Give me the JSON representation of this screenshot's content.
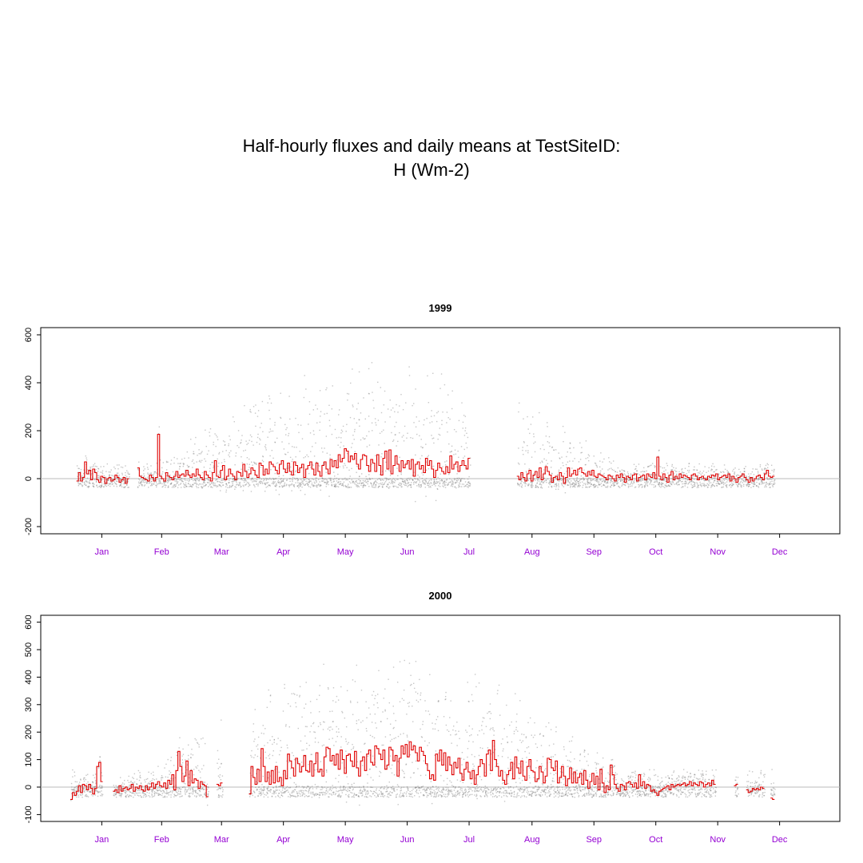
{
  "title": {
    "line1": "Half-hourly fluxes and daily means at TestSiteID:",
    "line2": "H (Wm-2)"
  },
  "colors": {
    "halfhourly": "#808080",
    "daily_mean": "#e00000",
    "zero_line": "#bbbbbb",
    "month_labels": "#9400d3",
    "axis": "#000000"
  },
  "chart_data": [
    {
      "type": "line",
      "title": "1999",
      "xlabel": "",
      "ylabel": "",
      "ylim": [
        -230,
        630
      ],
      "y_ticks": [
        -200,
        0,
        200,
        400,
        600
      ],
      "x_ticks": [
        "Jan",
        "Feb",
        "Mar",
        "Apr",
        "May",
        "Jun",
        "Jul",
        "Aug",
        "Sep",
        "Oct",
        "Nov",
        "Dec"
      ],
      "grid": false,
      "zero_line": true,
      "series": [
        {
          "kind": "daily_mean_step",
          "color": "#e00000",
          "segments": [
            {
              "start_day": 3,
              "values": [
                -10,
                25,
                -10,
                5,
                70,
                20,
                35,
                -5,
                40,
                25,
                -5,
                -15,
                10,
                5,
                -20,
                0,
                5,
                -10,
                -5,
                15,
                5,
                -15,
                -5,
                5,
                -20,
                0
              ]
            },
            {
              "start_day": 33,
              "values": [
                45,
                10,
                5,
                0,
                -5,
                -10,
                15,
                5,
                -10,
                5,
                185,
                10,
                0,
                -10,
                25,
                10,
                5,
                -5,
                10,
                30,
                5,
                15,
                20,
                10,
                35,
                15,
                5,
                20,
                10,
                40,
                15,
                5,
                -5,
                30,
                15,
                5,
                -10,
                25,
                75,
                10,
                5,
                35,
                55,
                -5,
                10,
                40,
                20,
                10,
                -5,
                30,
                25,
                10,
                60,
                30,
                5,
                20,
                45,
                35,
                15,
                5,
                65,
                55,
                15,
                40,
                20,
                70,
                60,
                50,
                35,
                20,
                60,
                75,
                40,
                25,
                65,
                30,
                15,
                70,
                55,
                25,
                45,
                60,
                5,
                40,
                55,
                70,
                40,
                15,
                65,
                30,
                10,
                55,
                70,
                40,
                20,
                80,
                50,
                75,
                45,
                100,
                70,
                85,
                125,
                115,
                70,
                95,
                80,
                105,
                60,
                40,
                80,
                100,
                95,
                55,
                30,
                80,
                65,
                30,
                100,
                55,
                15,
                85,
                115,
                40,
                120,
                20,
                55,
                95,
                60,
                30,
                75,
                45,
                60,
                75,
                40,
                80,
                10,
                60,
                70,
                40,
                55,
                25,
                85,
                55,
                75,
                40,
                5,
                35,
                65,
                45,
                30,
                20,
                50,
                25,
                95,
                40,
                60,
                70,
                30,
                55,
                75,
                55,
                40,
                85
              ]
            },
            {
              "start_day": 220,
              "values": [
                10,
                -5,
                25,
                5,
                -10,
                20,
                35,
                -10,
                15,
                30,
                5,
                45,
                -5,
                20,
                50,
                30,
                15,
                -15,
                5,
                10,
                -5,
                25,
                10,
                -20,
                5,
                45,
                10,
                20,
                35,
                15,
                40,
                45,
                25,
                20,
                10,
                30,
                15,
                35,
                10,
                5,
                20,
                15,
                10,
                5,
                -5,
                15,
                10,
                0,
                -10,
                15,
                5,
                20,
                5,
                -15,
                10,
                5,
                -5,
                15,
                20,
                -10,
                5,
                10,
                15,
                -5,
                20,
                10,
                5,
                25,
                0,
                90,
                10,
                -5,
                20,
                5,
                -15,
                15,
                30,
                -5,
                10,
                0,
                20,
                5,
                15,
                10,
                5,
                -5,
                15,
                20,
                10,
                -5,
                5,
                10,
                0,
                -5,
                10,
                5,
                15,
                10,
                20,
                -5,
                5,
                10,
                15,
                5,
                20,
                -10,
                10,
                0,
                -15,
                5,
                10,
                20,
                5,
                -5,
                -15,
                5,
                -10,
                0,
                10,
                15,
                5,
                -5,
                20,
                35,
                10,
                5,
                10
              ]
            }
          ]
        },
        {
          "kind": "halfhourly_points",
          "color": "#808080",
          "gaps_days": [
            [
              26,
              33
            ],
            [
              208,
              220
            ]
          ],
          "summer_peak_approx": 600
        }
      ]
    },
    {
      "type": "line",
      "title": "2000",
      "xlabel": "",
      "ylabel": "",
      "ylim": [
        -125,
        625
      ],
      "y_ticks": [
        -100,
        0,
        100,
        200,
        300,
        400,
        500,
        600
      ],
      "x_ticks": [
        "Jan",
        "Feb",
        "Mar",
        "Apr",
        "May",
        "Jun",
        "Jul",
        "Aug",
        "Sep",
        "Oct",
        "Nov",
        "Dec"
      ],
      "grid": false,
      "zero_line": true,
      "series": [
        {
          "kind": "daily_mean_step",
          "color": "#e00000",
          "segments": [
            {
              "start_day": 0,
              "values": [
                -45,
                -20,
                -30,
                -15,
                5,
                -20,
                10,
                5,
                -10,
                10,
                -5,
                -25,
                -5,
                75,
                90,
                20
              ]
            },
            {
              "start_day": 21,
              "values": [
                -15,
                -10,
                -20,
                5,
                -15,
                -5,
                0,
                -10,
                -5,
                10,
                -15,
                0,
                -5,
                5,
                -10,
                -15,
                5,
                -10,
                0,
                15,
                -5,
                10,
                20,
                5,
                0,
                15,
                -5,
                25,
                10,
                45,
                -10,
                60,
                130,
                75,
                20,
                40,
                95,
                5,
                60,
                15,
                30,
                25,
                -5,
                20,
                10,
                5,
                -35
              ]
            },
            {
              "start_day": 72,
              "values": [
                10,
                5,
                15
              ]
            },
            {
              "start_day": 88,
              "values": [
                -25,
                75,
                35,
                10,
                65,
                20,
                140,
                75,
                20,
                55,
                10,
                60,
                15,
                75,
                20,
                35,
                5,
                60,
                30,
                120,
                95,
                70,
                40,
                105,
                85,
                55,
                75,
                115,
                60,
                55,
                95,
                40,
                85,
                125,
                55,
                65,
                40,
                110,
                145,
                140,
                95,
                115,
                80,
                120,
                65,
                135,
                100,
                50,
                115,
                120,
                95,
                75,
                130,
                70,
                40,
                95,
                110,
                60,
                120,
                135,
                90,
                80,
                150,
                140,
                120,
                100,
                135,
                65,
                80,
                145,
                135,
                95,
                115,
                40,
                105,
                150,
                120,
                155,
                110,
                165,
                135,
                150,
                125,
                95,
                145,
                130,
                115,
                85,
                60,
                30,
                45,
                25,
                120,
                95,
                135,
                80,
                125,
                60,
                110,
                80,
                45,
                90,
                70,
                105,
                50,
                25,
                65,
                90,
                55,
                30,
                60,
                10,
                45,
                75,
                100,
                85,
                40,
                120,
                135,
                60,
                170,
                100,
                75,
                40,
                60,
                25,
                10,
                45,
                60,
                90,
                30,
                110,
                70,
                50,
                95,
                40,
                25,
                75,
                100,
                60,
                55,
                20,
                30,
                75,
                55,
                15,
                40,
                105,
                100,
                70,
                60,
                95,
                15,
                35,
                75,
                40,
                5,
                30,
                70,
                15,
                55,
                15,
                35,
                50,
                10,
                60,
                25,
                -5,
                20,
                50,
                10,
                40,
                -10,
                65,
                15,
                -20,
                5,
                -10,
                80,
                45,
                10,
                -5,
                -15,
                10,
                5,
                -10,
                15,
                20,
                10,
                0,
                15,
                -5,
                45,
                5,
                20,
                -5,
                10,
                5,
                -15,
                -10,
                -20,
                -30,
                -15,
                -10,
                -5,
                0,
                5,
                -10,
                10,
                0,
                5,
                10,
                5,
                10,
                15,
                5,
                10,
                20,
                5,
                15,
                10,
                5,
                20,
                15,
                0,
                10,
                15,
                5,
                25,
                10
              ]
            },
            {
              "start_day": 327,
              "values": [
                5,
                10
              ]
            },
            {
              "start_day": 333,
              "values": [
                -10,
                -20,
                -15,
                -5,
                -10,
                -5,
                -10,
                0,
                -5
              ]
            },
            {
              "start_day": 345,
              "values": [
                -40,
                -45
              ]
            }
          ]
        },
        {
          "kind": "halfhourly_points",
          "color": "#808080",
          "gaps_days": [
            [
              16,
              21
            ],
            [
              68,
              72
            ],
            [
              75,
              88
            ],
            [
              329,
              333
            ],
            [
              342,
              345
            ]
          ],
          "summer_peak_approx": 590
        }
      ]
    }
  ]
}
